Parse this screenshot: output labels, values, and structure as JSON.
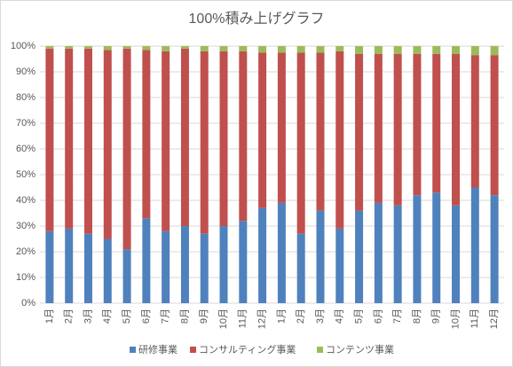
{
  "chart_data": {
    "type": "stacked_bar_100",
    "title": "100%積み上げグラフ",
    "categories": [
      "1月",
      "2月",
      "3月",
      "4月",
      "5月",
      "6月",
      "7月",
      "8月",
      "9月",
      "10月",
      "11月",
      "12月",
      "1月",
      "2月",
      "3月",
      "4月",
      "5月",
      "6月",
      "7月",
      "8月",
      "9月",
      "10月",
      "11月",
      "12月"
    ],
    "series": [
      {
        "name": "研修事業",
        "color": "#4f81bd",
        "values": [
          28,
          29,
          27,
          25,
          21,
          33,
          28,
          30,
          27,
          30,
          32,
          37,
          39,
          27,
          36,
          29,
          36,
          39,
          38,
          42,
          43,
          38,
          45,
          42
        ]
      },
      {
        "name": "コンサルティング事業",
        "color": "#c0504d",
        "values": [
          71,
          70,
          72,
          73.5,
          78,
          65.5,
          70,
          69,
          71,
          68,
          66,
          60.5,
          58.5,
          70.5,
          61.5,
          69,
          61,
          58,
          59,
          55,
          54,
          59,
          51.5,
          54.5
        ]
      },
      {
        "name": "コンテンツ事業",
        "color": "#9bbb59",
        "values": [
          1,
          1,
          1,
          1.5,
          1,
          1.5,
          2,
          1,
          2,
          2,
          2,
          2.5,
          2.5,
          2.5,
          2.5,
          2,
          3,
          3,
          3,
          3,
          3,
          3,
          3.5,
          3.5
        ]
      }
    ],
    "ylim": [
      0,
      100
    ],
    "yticks": [
      {
        "value": 0,
        "label": "0%"
      },
      {
        "value": 10,
        "label": "10%"
      },
      {
        "value": 20,
        "label": "20%"
      },
      {
        "value": 30,
        "label": "30%"
      },
      {
        "value": 40,
        "label": "40%"
      },
      {
        "value": 50,
        "label": "50%"
      },
      {
        "value": 60,
        "label": "60%"
      },
      {
        "value": 70,
        "label": "70%"
      },
      {
        "value": 80,
        "label": "80%"
      },
      {
        "value": 90,
        "label": "90%"
      },
      {
        "value": 100,
        "label": "100%"
      }
    ],
    "grid": true,
    "legend": "bottom"
  }
}
